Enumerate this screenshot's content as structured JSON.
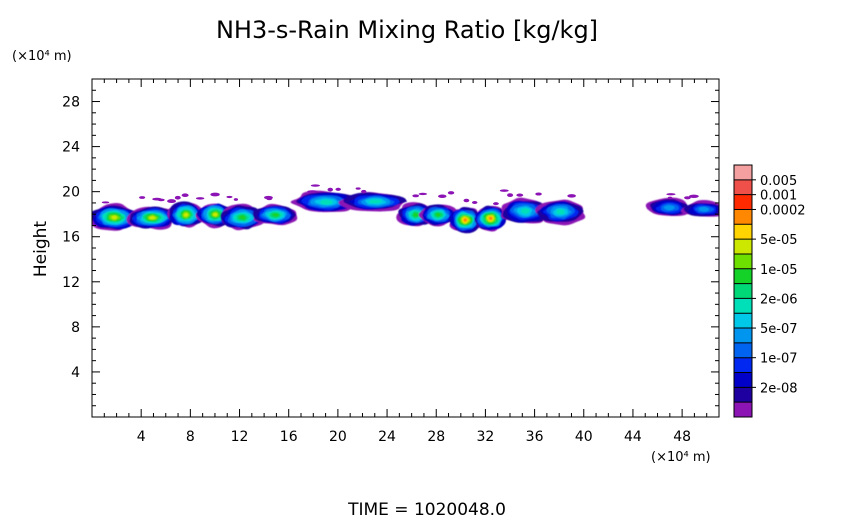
{
  "chart_data": {
    "type": "heatmap",
    "title": "NH3-s-Rain Mixing Ratio [kg/kg]",
    "xlabel": "",
    "ylabel": "Height",
    "x_unit_label": "(×10⁴ m)",
    "y_unit_label": "(×10⁴ m)",
    "time_label": "TIME =  1020048.0",
    "xlim": [
      0,
      51
    ],
    "ylim": [
      0,
      30
    ],
    "x_ticks": [
      4,
      8,
      12,
      16,
      20,
      24,
      28,
      32,
      36,
      40,
      44,
      48
    ],
    "y_ticks": [
      4,
      8,
      12,
      16,
      20,
      24,
      28
    ],
    "colorbar": {
      "levels": [
        {
          "label": "",
          "color": "#f4a0a0"
        },
        {
          "label": "0.005",
          "color": "#f0504a"
        },
        {
          "label": "0.001",
          "color": "#ff2a00"
        },
        {
          "label": "0.0002",
          "color": "#ff8800"
        },
        {
          "label": "",
          "color": "#ffd400"
        },
        {
          "label": "5e-05",
          "color": "#cce800"
        },
        {
          "label": "",
          "color": "#6ee000"
        },
        {
          "label": "1e-05",
          "color": "#14d228"
        },
        {
          "label": "",
          "color": "#00d878"
        },
        {
          "label": "2e-06",
          "color": "#00e0b8"
        },
        {
          "label": "",
          "color": "#00c8e8"
        },
        {
          "label": "5e-07",
          "color": "#0096f0"
        },
        {
          "label": "",
          "color": "#0064f0"
        },
        {
          "label": "1e-07",
          "color": "#0028f0"
        },
        {
          "label": "",
          "color": "#0000c8"
        },
        {
          "label": "2e-08",
          "color": "#1e00a0"
        },
        {
          "label": "",
          "color": "#8c14b4"
        }
      ]
    },
    "cloud_regions": [
      {
        "x": [
          0.5,
          6.5
        ],
        "y": [
          16.8,
          19.0
        ],
        "peak": "5e-05"
      },
      {
        "x": [
          6.5,
          11.0
        ],
        "y": [
          16.9,
          19.2
        ],
        "peak": "5e-05"
      },
      {
        "x": [
          11.0,
          16.5
        ],
        "y": [
          16.8,
          19.0
        ],
        "peak": "1e-05"
      },
      {
        "x": [
          17.0,
          25.0
        ],
        "y": [
          18.0,
          20.0
        ],
        "peak": "2e-06"
      },
      {
        "x": [
          25.0,
          29.5
        ],
        "y": [
          17.0,
          19.3
        ],
        "peak": "1e-05"
      },
      {
        "x": [
          29.5,
          33.5
        ],
        "y": [
          16.5,
          18.8
        ],
        "peak": "0.0002"
      },
      {
        "x": [
          33.5,
          39.5
        ],
        "y": [
          17.0,
          19.5
        ],
        "peak": "2e-06"
      },
      {
        "x": [
          45.5,
          51.0
        ],
        "y": [
          17.6,
          19.2
        ],
        "peak": "5e-07"
      }
    ]
  }
}
